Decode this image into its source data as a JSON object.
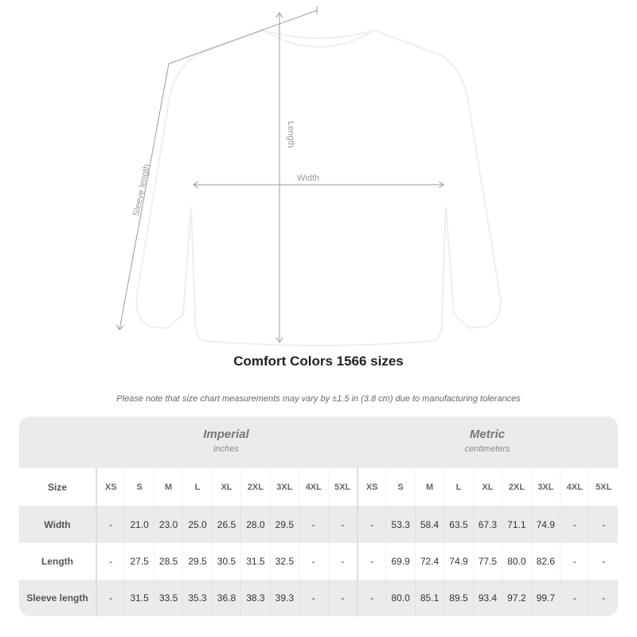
{
  "diagram": {
    "labels": {
      "sleeve": "Sleeve length",
      "length": "Length",
      "width": "Width"
    }
  },
  "title": "Comfort Colors 1566 sizes",
  "note": "Please note that size chart measurements may vary by ±1.5 in (3.8 cm) due to manufacturing tolerances",
  "imperial": {
    "name": "Imperial",
    "unit": "inches"
  },
  "metric": {
    "name": "Metric",
    "unit": "centimeters"
  },
  "size_label": "Size",
  "sizes": [
    "XS",
    "S",
    "M",
    "L",
    "XL",
    "2XL",
    "3XL",
    "4XL",
    "5XL"
  ],
  "rows": [
    {
      "label": "Width",
      "imperial": [
        "-",
        "21.0",
        "23.0",
        "25.0",
        "26.5",
        "28.0",
        "29.5",
        "-",
        "-"
      ],
      "metric": [
        "-",
        "53.3",
        "58.4",
        "63.5",
        "67.3",
        "71.1",
        "74.9",
        "-",
        "-"
      ]
    },
    {
      "label": "Length",
      "imperial": [
        "-",
        "27.5",
        "28.5",
        "29.5",
        "30.5",
        "31.5",
        "32.5",
        "-",
        "-"
      ],
      "metric": [
        "-",
        "69.9",
        "72.4",
        "74.9",
        "77.5",
        "80.0",
        "82.6",
        "-",
        "-"
      ]
    },
    {
      "label": "Sleeve length",
      "imperial": [
        "-",
        "31.5",
        "33.5",
        "35.3",
        "36.8",
        "38.3",
        "39.3",
        "-",
        "-"
      ],
      "metric": [
        "-",
        "80.0",
        "85.1",
        "89.5",
        "93.4",
        "97.2",
        "99.7",
        "-",
        "-"
      ]
    }
  ]
}
